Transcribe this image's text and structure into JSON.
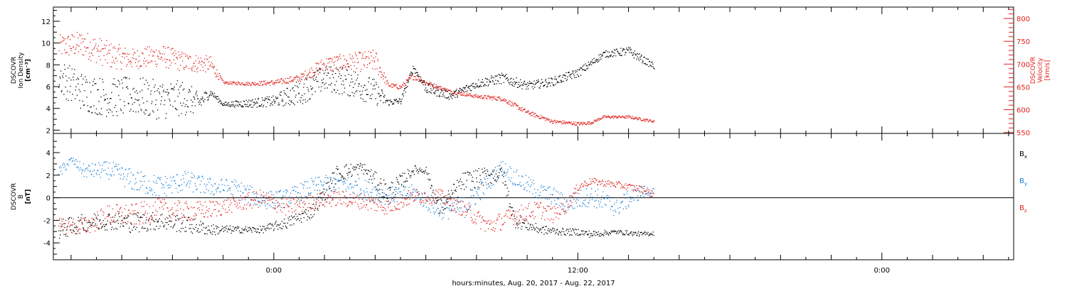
{
  "figure": {
    "xlabel": "hours:minutes, Aug. 20, 2017 - Aug. 22, 2017",
    "x_ticks": [
      {
        "label": "0:00",
        "hour": 0
      },
      {
        "label": "12:00",
        "hour": 12
      },
      {
        "label": "0:00",
        "hour": 24
      }
    ],
    "x_range_hours": [
      -8.7,
      29.2
    ]
  },
  "chart_data": [
    {
      "type": "scatter",
      "panel": "plasma",
      "ylabel_left": [
        "DSCOVR",
        "Ion Density",
        "[cm⁻³]"
      ],
      "ylabel_right": [
        "DSCOVR",
        "Velocity",
        "[km/s]"
      ],
      "ylim_left": [
        1.7,
        13.3
      ],
      "yticks_left": [
        2,
        4,
        6,
        8,
        10,
        12
      ],
      "ylim_right": [
        548,
        825
      ],
      "yticks_right": [
        550,
        600,
        650,
        700,
        750,
        800
      ],
      "colors": {
        "density": "#000000",
        "velocity": "#e0201b"
      },
      "series": [
        {
          "name": "Ion Density",
          "axis": "left",
          "x_hours": [
            -8.5,
            -7.5,
            -6.5,
            -5.5,
            -4.5,
            -3.5,
            -3.0,
            -2.5,
            -2.0,
            -1.0,
            0.0,
            1.0,
            2.0,
            3.0,
            4.0,
            4.5,
            5.0,
            5.5,
            6.0,
            7.0,
            8.0,
            9.0,
            10.0,
            11.0,
            12.0,
            13.0,
            14.0,
            15.0
          ],
          "values": [
            7.0,
            5.5,
            5.0,
            5.2,
            4.8,
            5.0,
            4.5,
            5.5,
            4.4,
            4.5,
            4.7,
            5.5,
            6.8,
            6.5,
            5.5,
            4.6,
            4.7,
            7.8,
            5.9,
            5.2,
            6.3,
            6.8,
            6.1,
            6.5,
            7.3,
            9.0,
            9.3,
            7.9
          ],
          "spread": [
            1.6,
            1.8,
            1.8,
            1.8,
            1.8,
            1.6,
            1.0,
            0.3,
            0.2,
            0.4,
            0.5,
            1.2,
            1.2,
            1.4,
            1.2,
            0.3,
            0.3,
            0.3,
            0.5,
            0.4,
            0.4,
            0.5,
            0.4,
            0.4,
            0.4,
            0.3,
            0.4,
            0.3
          ]
        },
        {
          "name": "Velocity",
          "axis": "right",
          "x_hours": [
            -8.5,
            -7.5,
            -6.5,
            -5.5,
            -4.5,
            -3.5,
            -2.5,
            -2.0,
            -1.0,
            0.0,
            1.0,
            2.0,
            3.0,
            4.0,
            4.5,
            5.0,
            5.5,
            6.0,
            7.0,
            8.0,
            9.0,
            10.0,
            11.0,
            12.0,
            12.5,
            13.0,
            14.0,
            15.0
          ],
          "values": [
            740,
            745,
            720,
            712,
            720,
            705,
            700,
            660,
            658,
            660,
            670,
            700,
            705,
            708,
            655,
            650,
            675,
            660,
            640,
            630,
            625,
            595,
            575,
            570,
            572,
            585,
            585,
            575
          ],
          "spread": [
            25,
            30,
            30,
            22,
            25,
            22,
            18,
            3,
            4,
            6,
            8,
            18,
            20,
            25,
            5,
            5,
            8,
            5,
            4,
            4,
            5,
            5,
            4,
            4,
            3,
            3,
            3,
            3
          ]
        }
      ]
    },
    {
      "type": "scatter",
      "panel": "magnetic",
      "ylabel": [
        "DSCOVR",
        "B",
        "[nT]"
      ],
      "ylim": [
        -5.5,
        5.7
      ],
      "yticks": [
        -4,
        -2,
        0,
        2,
        4
      ],
      "zero_line": true,
      "colors": {
        "Bx": "#000000",
        "By": "#1a7fd6",
        "Bz": "#e0201b"
      },
      "series": [
        {
          "name": "Bx",
          "color": "#000000",
          "x_hours": [
            -8.5,
            -7.5,
            -6.5,
            -5.5,
            -4.5,
            -3.5,
            -2.5,
            -1.5,
            -0.5,
            0.5,
            1.5,
            2.5,
            3.5,
            4.5,
            5.5,
            6.0,
            6.5,
            7.5,
            8.5,
            9.0,
            9.5,
            10.5,
            11.5,
            12.0,
            12.5,
            13.5,
            14.5,
            15.0
          ],
          "values": [
            -2.8,
            -2.2,
            -2.0,
            -2.2,
            -2.0,
            -2.3,
            -2.8,
            -2.8,
            -2.8,
            -2.2,
            -1.2,
            2.2,
            2.7,
            0.4,
            2.5,
            2.5,
            -1.0,
            1.5,
            2.0,
            2.2,
            -2.0,
            -2.8,
            -3.0,
            -3.0,
            -3.2,
            -3.0,
            -3.2,
            -3.1
          ],
          "spread": [
            0.9,
            0.8,
            0.8,
            0.9,
            0.8,
            0.8,
            0.5,
            0.3,
            0.3,
            0.5,
            0.6,
            0.8,
            0.5,
            1.0,
            0.4,
            0.3,
            0.8,
            0.9,
            0.8,
            0.8,
            0.6,
            0.4,
            0.3,
            0.3,
            0.3,
            0.2,
            0.2,
            0.2
          ]
        },
        {
          "name": "By",
          "color": "#1a7fd6",
          "x_hours": [
            -8.5,
            -8.0,
            -7.5,
            -6.5,
            -5.5,
            -4.5,
            -3.5,
            -2.5,
            -1.5,
            -0.5,
            0.5,
            1.5,
            2.5,
            3.5,
            4.5,
            5.5,
            6.5,
            7.5,
            8.5,
            9.0,
            9.5,
            10.5,
            11.0,
            11.5,
            12.5,
            13.5,
            14.5,
            15.0
          ],
          "values": [
            2.2,
            3.4,
            2.4,
            2.5,
            1.5,
            1.0,
            1.5,
            1.0,
            0.8,
            -0.2,
            0.0,
            1.0,
            1.4,
            0.8,
            0.2,
            0.5,
            -1.0,
            -0.8,
            1.5,
            2.8,
            1.8,
            0.5,
            0.2,
            -0.5,
            0.2,
            -0.8,
            0.6,
            0.5
          ],
          "spread": [
            0.6,
            0.3,
            0.6,
            0.8,
            1.0,
            1.0,
            0.9,
            0.8,
            0.9,
            0.8,
            0.8,
            0.8,
            0.8,
            0.9,
            0.8,
            0.7,
            0.9,
            1.0,
            0.8,
            0.6,
            0.8,
            0.8,
            0.8,
            0.8,
            0.9,
            0.9,
            0.6,
            0.4
          ]
        },
        {
          "name": "Bz",
          "color": "#e0201b",
          "x_hours": [
            -8.5,
            -7.5,
            -6.5,
            -5.5,
            -4.5,
            -3.5,
            -2.5,
            -1.5,
            -0.5,
            0.5,
            1.5,
            2.5,
            3.5,
            4.5,
            5.5,
            6.5,
            7.0,
            7.5,
            8.5,
            9.5,
            10.5,
            11.0,
            11.5,
            12.0,
            12.5,
            13.5,
            14.5,
            15.0
          ],
          "values": [
            -2.5,
            -2.5,
            -1.5,
            -1.5,
            -1.0,
            -1.2,
            -1.0,
            -0.5,
            0.0,
            -0.8,
            -0.3,
            0.0,
            -0.3,
            -0.8,
            0.2,
            0.2,
            -0.5,
            -1.0,
            -2.5,
            -1.5,
            -1.0,
            -1.5,
            -0.8,
            1.0,
            1.5,
            1.2,
            0.8,
            0.3
          ],
          "spread": [
            0.7,
            0.8,
            1.0,
            1.0,
            1.0,
            0.9,
            0.8,
            0.7,
            0.8,
            0.8,
            0.7,
            0.7,
            0.7,
            0.7,
            0.7,
            0.7,
            0.6,
            0.7,
            0.8,
            0.8,
            0.8,
            0.7,
            0.6,
            0.4,
            0.3,
            0.3,
            0.3,
            0.3
          ]
        }
      ],
      "legend": [
        "Bx",
        "By",
        "Bz"
      ]
    }
  ]
}
